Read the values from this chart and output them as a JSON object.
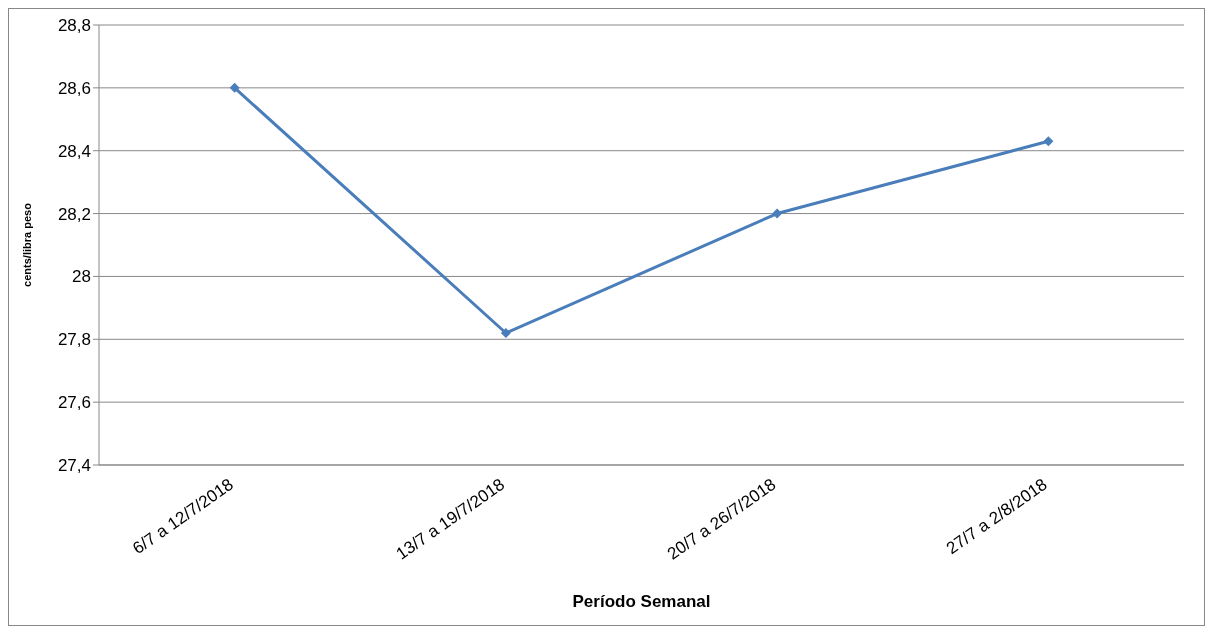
{
  "chart_data": {
    "type": "line",
    "xlabel": "Período Semanal",
    "ylabel": "cents/libra peso",
    "categories": [
      "6/7 a 12/7/2018",
      "13/7 a 19/7/2018",
      "20/7 a 26/7/2018",
      "27/7 a 2/8/2018"
    ],
    "series": [
      {
        "color": "#4a7ebb",
        "values": [
          28.6,
          27.82,
          28.2,
          28.43
        ]
      }
    ],
    "ylim": [
      27.4,
      28.8
    ],
    "yticks": [
      {
        "value": 27.4,
        "label": "27,4"
      },
      {
        "value": 27.6,
        "label": "27,6"
      },
      {
        "value": 27.8,
        "label": "27,8"
      },
      {
        "value": 28,
        "label": "28"
      },
      {
        "value": 28.2,
        "label": "28,2"
      },
      {
        "value": 28.4,
        "label": "28,4"
      },
      {
        "value": 28.6,
        "label": "28,6"
      },
      {
        "value": 28.8,
        "label": "28,8"
      }
    ],
    "grid": "y",
    "marker": "diamond",
    "line_style": "solid",
    "legend": false
  }
}
